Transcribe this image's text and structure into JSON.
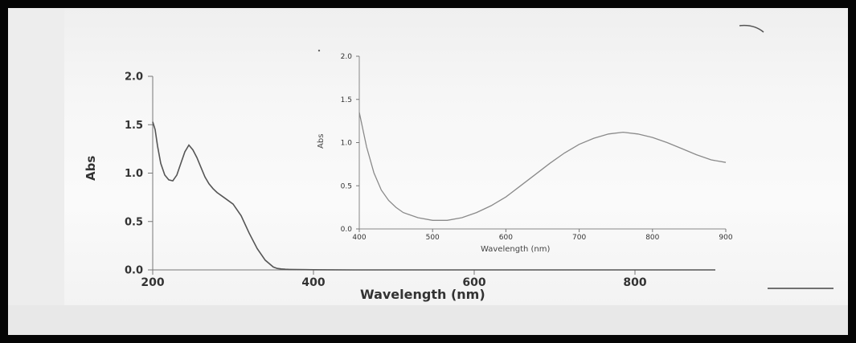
{
  "chart_data": [
    {
      "type": "line",
      "name": "main",
      "xlabel": "Wavelength (nm)",
      "ylabel": "Abs",
      "xlim": [
        200,
        900
      ],
      "ylim": [
        0.0,
        2.0
      ],
      "xticks": [
        200,
        400,
        600,
        800
      ],
      "yticks": [
        "0.0",
        "0.5",
        "1.0",
        "1.5",
        "2.0"
      ],
      "series": [
        {
          "x": [
            200,
            203,
            206,
            210,
            215,
            220,
            225,
            230,
            235,
            240,
            245,
            250,
            255,
            260,
            265,
            270,
            275,
            280,
            290,
            300,
            310,
            320,
            330,
            340,
            350,
            355,
            360,
            365,
            370,
            380,
            400,
            450,
            500,
            600,
            700,
            800,
            900
          ],
          "y": [
            1.53,
            1.45,
            1.28,
            1.1,
            0.98,
            0.93,
            0.92,
            0.98,
            1.1,
            1.22,
            1.29,
            1.24,
            1.16,
            1.06,
            0.96,
            0.89,
            0.84,
            0.8,
            0.74,
            0.68,
            0.56,
            0.38,
            0.22,
            0.1,
            0.03,
            0.015,
            0.01,
            0.007,
            0.005,
            0.003,
            0.002,
            0.0,
            0.0,
            0.0,
            0.0,
            0.0,
            0.0
          ]
        }
      ]
    },
    {
      "type": "line",
      "name": "inset",
      "xlabel": "Wavelength (nm)",
      "ylabel": "Abs",
      "xlim": [
        400,
        900
      ],
      "ylim": [
        0.0,
        2.0
      ],
      "xticks": [
        "400",
        "500",
        "600",
        "700",
        "800",
        "900"
      ],
      "yticks": [
        "0.0",
        "0.5",
        "1.0",
        "1.5",
        "2.0"
      ],
      "series": [
        {
          "x": [
            400,
            410,
            420,
            430,
            440,
            450,
            460,
            480,
            500,
            510,
            520,
            540,
            560,
            580,
            600,
            620,
            640,
            660,
            680,
            700,
            720,
            740,
            760,
            780,
            800,
            820,
            840,
            860,
            880,
            900
          ],
          "y": [
            1.35,
            0.95,
            0.65,
            0.45,
            0.33,
            0.25,
            0.19,
            0.13,
            0.1,
            0.1,
            0.1,
            0.13,
            0.19,
            0.27,
            0.37,
            0.5,
            0.63,
            0.76,
            0.88,
            0.98,
            1.05,
            1.1,
            1.12,
            1.1,
            1.06,
            1.0,
            0.93,
            0.86,
            0.8,
            0.77
          ]
        }
      ]
    }
  ]
}
